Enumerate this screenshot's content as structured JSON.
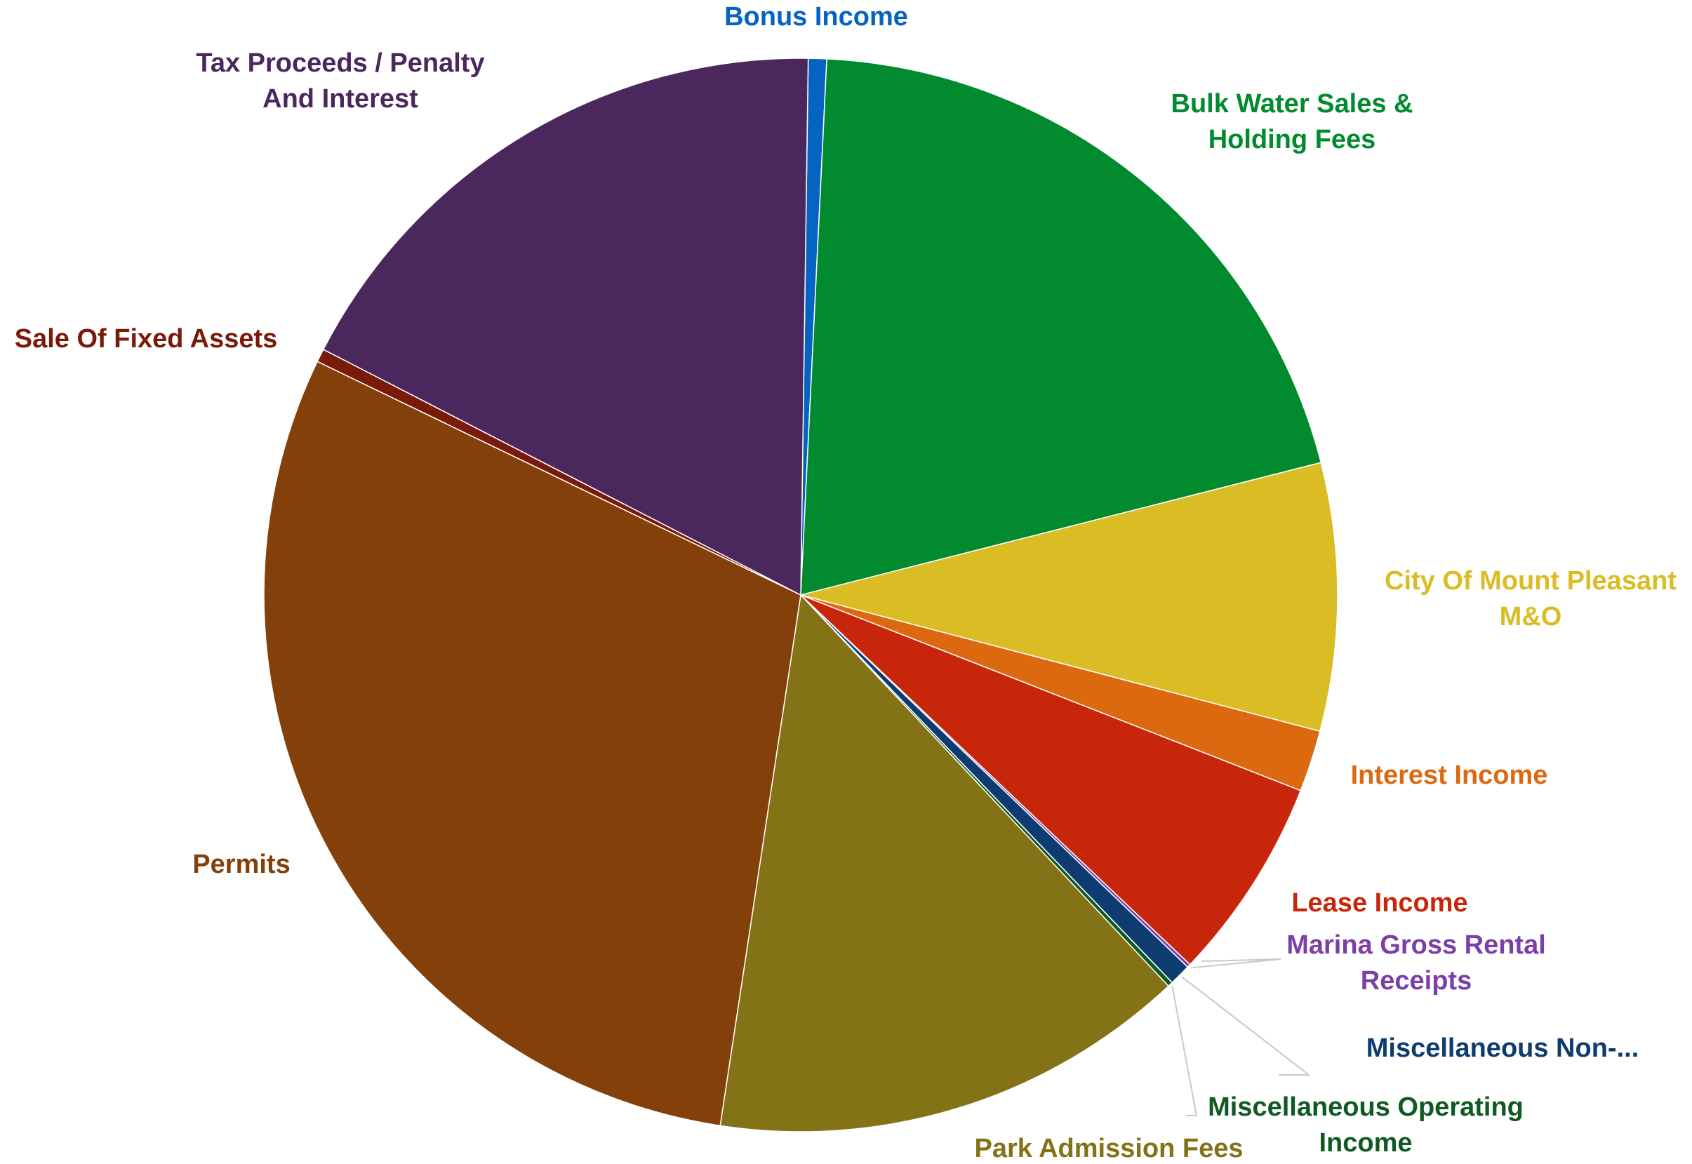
{
  "chart_data": {
    "type": "pie",
    "title": "",
    "slices": [
      {
        "label": "Bonus Income",
        "value": 0.55,
        "color": "#0563C1"
      },
      {
        "label": "Bulk Water Sales & Holding Fees",
        "value": 20.25,
        "color": "#028A2E"
      },
      {
        "label": "City Of Mount Pleasant M&O",
        "value": 8.05,
        "color": "#DABD25"
      },
      {
        "label": "Interest Income",
        "value": 1.85,
        "color": "#DC6810"
      },
      {
        "label": "Lease Income",
        "value": 6.15,
        "color": "#C8260A"
      },
      {
        "label": "Marina Gross Rental Receipts",
        "value": 0.1,
        "color": "#7A3FA8"
      },
      {
        "label": "Miscellaneous Non-...",
        "value": 0.65,
        "color": "#0E3C70"
      },
      {
        "label": "Miscellaneous Operating Income",
        "value": 0.15,
        "color": "#0E5A22"
      },
      {
        "label": "Park Admission Fees",
        "value": 14.4,
        "color": "#847216"
      },
      {
        "label": "Permits",
        "value": 29.75,
        "color": "#84400A"
      },
      {
        "label": "Sale Of Fixed Assets",
        "value": 0.4,
        "color": "#7A1A0A"
      },
      {
        "label": "Tax Proceeds / Penalty And Interest",
        "value": 17.65,
        "color": "#4A275C"
      }
    ]
  }
}
